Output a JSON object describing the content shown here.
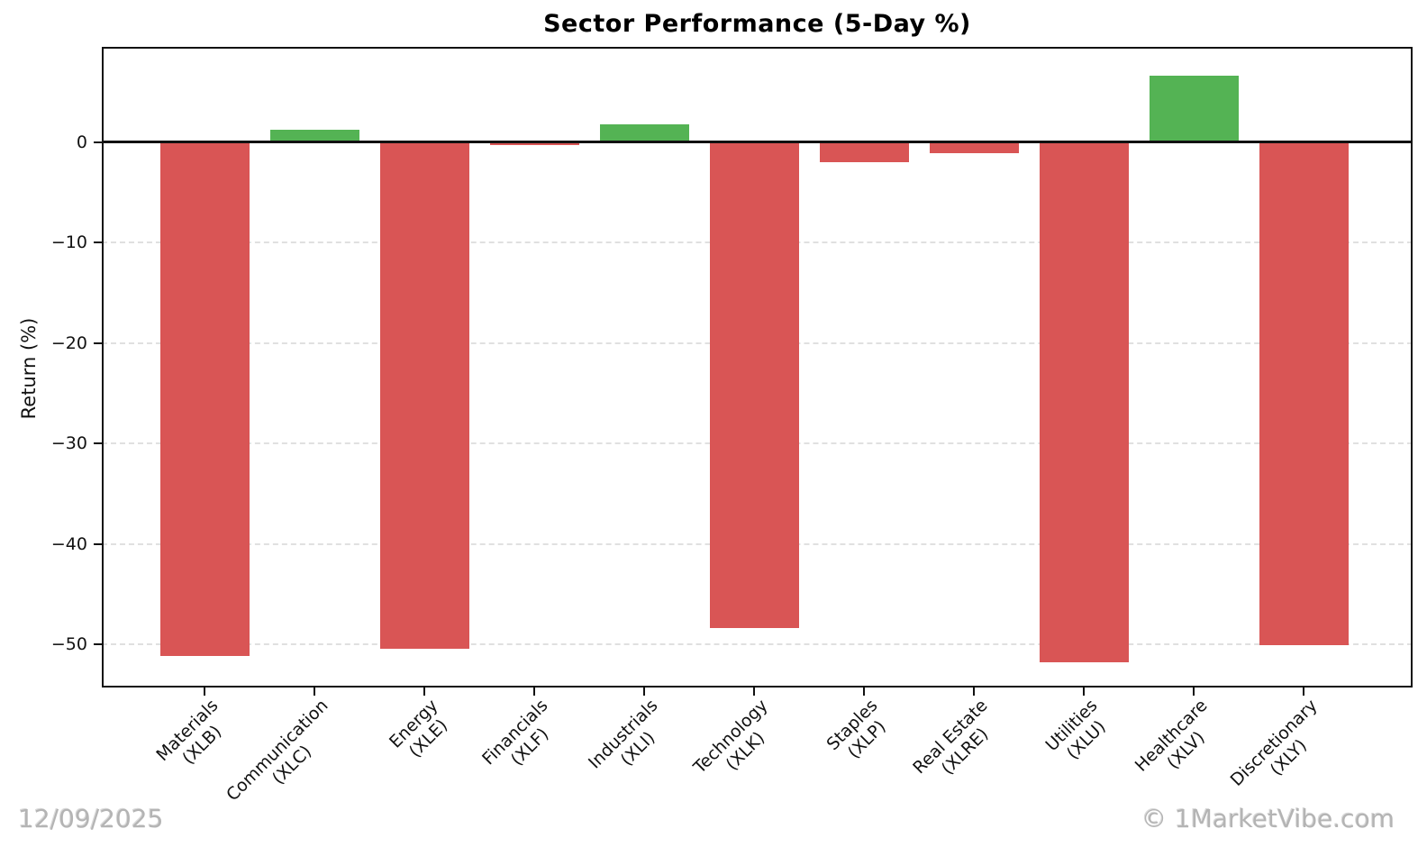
{
  "title": "Sector Performance (5-Day %)",
  "footer": {
    "date": "12/09/2025",
    "credit": "© 1MarketVibe.com"
  },
  "colors": {
    "positive_bar": "#54b354",
    "negative_bar": "#d95555",
    "grid": "#e0e0e0",
    "axis": "#111111",
    "watermark": "#b4b4b4"
  },
  "chart_data": {
    "type": "bar",
    "title": "Sector Performance (5-Day %)",
    "xlabel": "",
    "ylabel": "Return (%)",
    "ylim": [
      -54.3,
      9.5
    ],
    "grid": "horizontal dashed gridlines at y ticks",
    "legend": "none",
    "zero_line": true,
    "categories": [
      "Materials",
      "Communication",
      "Energy",
      "Financials",
      "Industrials",
      "Technology",
      "Staples",
      "Real Estate",
      "Utilities",
      "Healthcare",
      "Discretionary"
    ],
    "tickers": [
      "(XLB)",
      "(XLC)",
      "(XLE)",
      "(XLF)",
      "(XLI)",
      "(XLK)",
      "(XLP)",
      "(XLRE)",
      "(XLU)",
      "(XLV)",
      "(XLY)"
    ],
    "values": [
      -51.2,
      1.2,
      -50.4,
      -0.3,
      1.8,
      -48.4,
      -2.0,
      -1.1,
      -51.8,
      6.6,
      -50.1
    ],
    "color_rule": "green bar if value > 0, red bar if value < 0",
    "yticks": [
      0,
      -10,
      -20,
      -30,
      -40,
      -50
    ],
    "ytick_labels": [
      "0",
      "−10",
      "−20",
      "−30",
      "−40",
      "−50"
    ]
  }
}
